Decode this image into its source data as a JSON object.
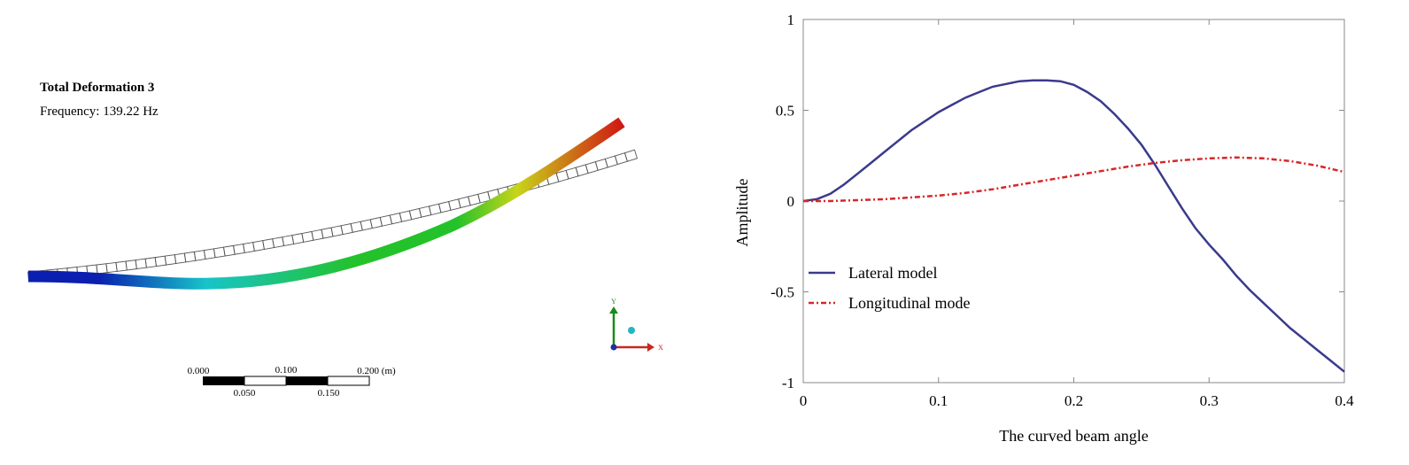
{
  "fea": {
    "title": "Total Deformation 3",
    "frequency": "Frequency: 139.22 Hz",
    "scale_labels_top": [
      "0.000",
      "0.100",
      "0.200 (m)"
    ],
    "scale_labels_bottom": [
      "0.050",
      "0.150"
    ],
    "triad": {
      "y_label": "Y",
      "x_label": "X"
    },
    "colors": {
      "min": "#0a1fb0",
      "cyan": "#17c4c9",
      "green": "#24c22a",
      "yellow": "#c8d41a",
      "max": "#d01414"
    }
  },
  "chart_data": {
    "type": "line",
    "xlabel": "The curved beam angle",
    "ylabel": "Amplitude",
    "xlim": [
      0,
      0.4
    ],
    "ylim": [
      -1,
      1
    ],
    "xticks": [
      0,
      0.1,
      0.2,
      0.3,
      0.4
    ],
    "xtick_labels": [
      "0",
      "0.1",
      "0.2",
      "0.3",
      "0.4"
    ],
    "yticks": [
      -1,
      -0.5,
      0,
      0.5,
      1
    ],
    "ytick_labels": [
      "-1",
      "-0.5",
      "0",
      "0.5",
      "1"
    ],
    "grid": false,
    "legend_position": "lower-left",
    "series": [
      {
        "name": "Lateral model",
        "color": "#3a3a8c",
        "style": "solid",
        "x": [
          0,
          0.01,
          0.02,
          0.03,
          0.04,
          0.05,
          0.06,
          0.07,
          0.08,
          0.09,
          0.1,
          0.11,
          0.12,
          0.13,
          0.14,
          0.15,
          0.16,
          0.17,
          0.18,
          0.19,
          0.2,
          0.21,
          0.22,
          0.23,
          0.24,
          0.25,
          0.26,
          0.27,
          0.28,
          0.29,
          0.3,
          0.31,
          0.32,
          0.33,
          0.34,
          0.35,
          0.36,
          0.37,
          0.38,
          0.39,
          0.4
        ],
        "values": [
          0,
          0.01,
          0.04,
          0.09,
          0.15,
          0.21,
          0.27,
          0.33,
          0.39,
          0.44,
          0.49,
          0.53,
          0.57,
          0.6,
          0.63,
          0.645,
          0.66,
          0.665,
          0.665,
          0.66,
          0.64,
          0.6,
          0.55,
          0.48,
          0.4,
          0.31,
          0.2,
          0.08,
          -0.04,
          -0.15,
          -0.24,
          -0.32,
          -0.41,
          -0.49,
          -0.56,
          -0.63,
          -0.7,
          -0.76,
          -0.82,
          -0.88,
          -0.94
        ]
      },
      {
        "name": "Longitudinal mode",
        "color": "#d62728",
        "style": "dash-dot",
        "x": [
          0,
          0.02,
          0.04,
          0.06,
          0.08,
          0.1,
          0.12,
          0.14,
          0.16,
          0.18,
          0.2,
          0.22,
          0.24,
          0.26,
          0.28,
          0.3,
          0.32,
          0.34,
          0.36,
          0.38,
          0.4
        ],
        "values": [
          0,
          0.0,
          0.005,
          0.01,
          0.02,
          0.03,
          0.045,
          0.065,
          0.09,
          0.115,
          0.14,
          0.165,
          0.19,
          0.21,
          0.225,
          0.235,
          0.24,
          0.235,
          0.22,
          0.195,
          0.16
        ]
      }
    ]
  }
}
